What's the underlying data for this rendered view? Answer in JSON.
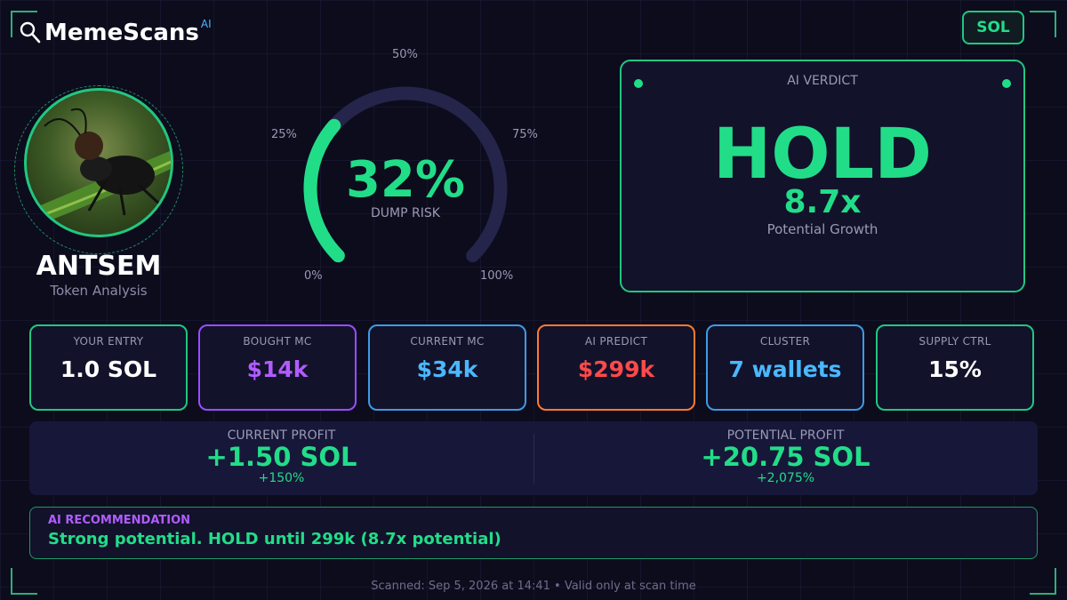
{
  "brand": {
    "name": "MemeScans",
    "ai_badge": "AI"
  },
  "chain_button": "SOL",
  "token": {
    "name": "ANTSEM",
    "subtitle": "Token Analysis"
  },
  "gauge": {
    "value": 32,
    "value_label": "32%",
    "label": "DUMP RISK",
    "ticks": {
      "t0": "0%",
      "t25": "25%",
      "t50": "50%",
      "t75": "75%",
      "t100": "100%"
    }
  },
  "verdict": {
    "title": "AI VERDICT",
    "action": "HOLD",
    "multiplier": "8.7x",
    "sub": "Potential Growth"
  },
  "stats": [
    {
      "label": "YOUR ENTRY",
      "value": "1.0 SOL",
      "color": "#ffffff",
      "border": "#22c77f"
    },
    {
      "label": "BOUGHT MC",
      "value": "$14k",
      "color": "#b15cff",
      "border": "#9b4dff"
    },
    {
      "label": "CURRENT MC",
      "value": "$34k",
      "color": "#4ab8ff",
      "border": "#3d9be6"
    },
    {
      "label": "AI PREDICT",
      "value": "$299k",
      "color": "#ff4a4a",
      "border": "#ff7a2d"
    },
    {
      "label": "CLUSTER",
      "value": "7 wallets",
      "color": "#4ab8ff",
      "border": "#3d9be6"
    },
    {
      "label": "SUPPLY CTRL",
      "value": "15%",
      "color": "#ffffff",
      "border": "#22c77f"
    }
  ],
  "profit": {
    "current": {
      "label": "CURRENT PROFIT",
      "value": "+1.50 SOL",
      "pct": "+150%"
    },
    "potential": {
      "label": "POTENTIAL PROFIT",
      "value": "+20.75 SOL",
      "pct": "+2,075%"
    }
  },
  "recommendation": {
    "heading": "AI RECOMMENDATION",
    "text": "Strong potential. HOLD until 299k (8.7x potential)"
  },
  "footer": "Scanned: Sep 5, 2026 at 14:41  •  Valid only at scan time",
  "colors": {
    "accent": "#22dd88",
    "track": "#25244a",
    "background": "#0c0c1d"
  }
}
